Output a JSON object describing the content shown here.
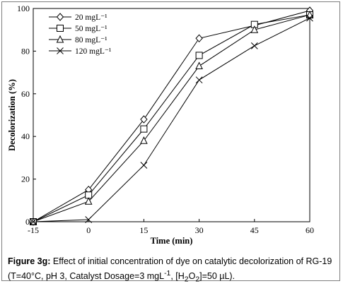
{
  "chart_data": {
    "type": "line",
    "x": [
      -15,
      0,
      15,
      30,
      45,
      60
    ],
    "xticks": [
      "-15",
      "0",
      "15",
      "30",
      "45",
      "60"
    ],
    "yticks": [
      "0",
      "20",
      "40",
      "60",
      "80",
      "100"
    ],
    "xlim": [
      -15,
      60
    ],
    "ylim": [
      0,
      100
    ],
    "xlabel": "Time (min)",
    "ylabel": "Decolorization (%)",
    "legend_position": "top-left",
    "grid": false,
    "series": [
      {
        "name": "20 mgL⁻¹",
        "marker": "diamond",
        "values": [
          0,
          15,
          48,
          86,
          92,
          99
        ]
      },
      {
        "name": "50 mgL⁻¹",
        "marker": "square",
        "values": [
          0,
          12.5,
          43.5,
          78,
          92.5,
          97
        ]
      },
      {
        "name": "80 mgL⁻¹",
        "marker": "triangle",
        "values": [
          0,
          9.5,
          38,
          73,
          90,
          97
        ]
      },
      {
        "name": "120 mgL⁻¹",
        "marker": "x",
        "values": [
          0,
          1,
          26.5,
          66.5,
          82.5,
          95.5
        ]
      }
    ]
  },
  "caption": {
    "label": "Figure 3g:",
    "text_a": " Effect of initial concentration of dye on catalytic decolorization of RG-19 (T=40°C, pH 3, Catalyst Dosage=3 mgL",
    "sup_a": "-1",
    "text_b": ", [H",
    "sub_b": "2",
    "text_c": "O",
    "sub_c": "2",
    "text_d": "]=50 µL)."
  }
}
